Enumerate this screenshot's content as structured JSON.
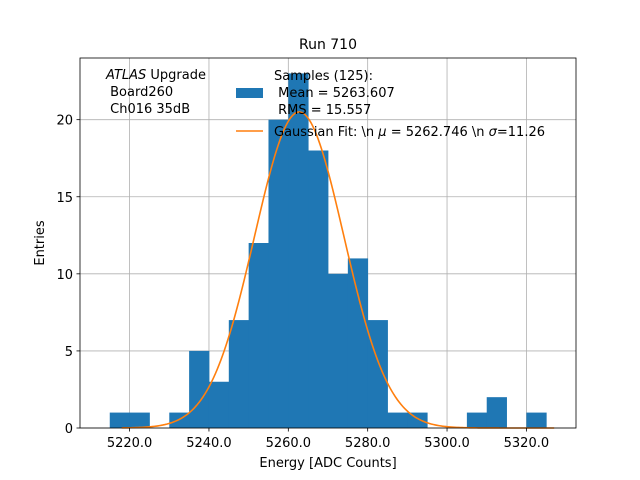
{
  "chart_data": {
    "type": "bar",
    "title": "Run 710",
    "xlabel": "Energy [ADC Counts]",
    "ylabel": "Entries",
    "xlim": [
      5207.5,
      5332.5
    ],
    "ylim": [
      0,
      24
    ],
    "grid": true,
    "xticks": [
      5220,
      5240,
      5260,
      5280,
      5300,
      5320
    ],
    "xtick_labels": [
      "5220.0",
      "5240.0",
      "5260.0",
      "5280.0",
      "5300.0",
      "5320.0"
    ],
    "yticks": [
      0,
      5,
      10,
      15,
      20
    ],
    "ytick_labels": [
      "0",
      "5",
      "10",
      "15",
      "20"
    ],
    "annotation": {
      "line1_italic": "ATLAS",
      "line1_rest": " Upgrade",
      "line2": " Board260",
      "line3": " Ch016 35dB"
    },
    "legend_placement": "top-right",
    "histogram": {
      "name_lines": [
        "Samples (125):",
        " Mean = 5263.607",
        " RMS = 15.557"
      ],
      "color": "#1f77b4",
      "bin_width": 5,
      "bin_left_edges": [
        5215,
        5220,
        5225,
        5230,
        5235,
        5240,
        5245,
        5250,
        5255,
        5260,
        5265,
        5270,
        5275,
        5280,
        5285,
        5290,
        5295,
        5300,
        5305,
        5310,
        5315,
        5320
      ],
      "counts": [
        1,
        1,
        0,
        1,
        5,
        3,
        7,
        12,
        20,
        23,
        18,
        10,
        11,
        7,
        1,
        1,
        0,
        0,
        1,
        2,
        0,
        1
      ]
    },
    "gaussian_fit": {
      "name_prefix": "Gaussian Fit: \\n ",
      "mu_symbol": "μ",
      "mu_text": " = 5262.746 \\n ",
      "sigma_symbol": "σ",
      "sigma_text": "=11.26",
      "mu": 5262.746,
      "sigma": 11.26,
      "amplitude": 20.5,
      "x_range": [
        5218,
        5327
      ],
      "color": "#ff7f0e"
    }
  }
}
